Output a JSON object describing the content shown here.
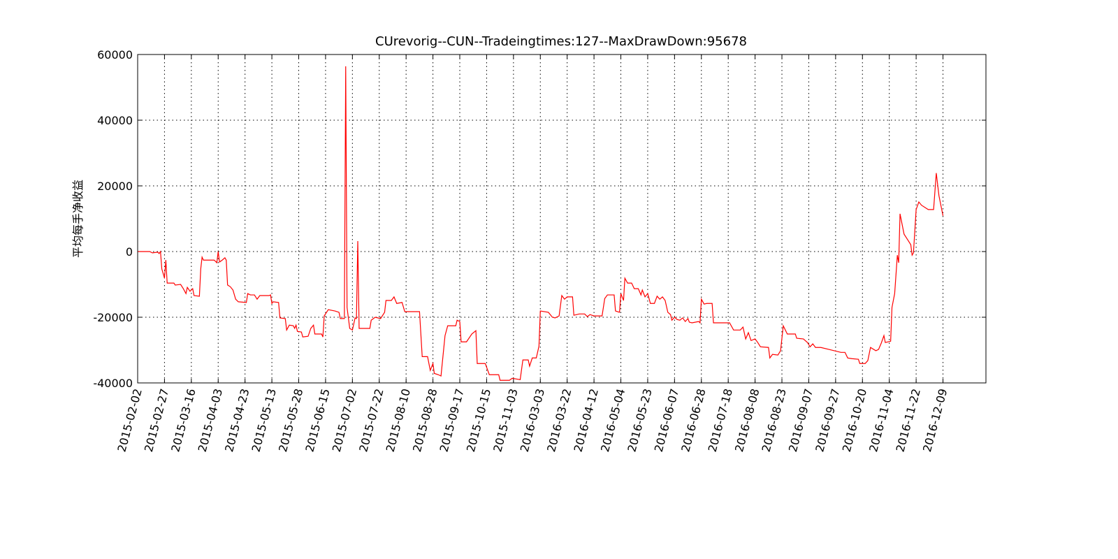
{
  "chart_data": {
    "type": "line",
    "title": "CUrevorig--CUN--Tradeingtimes:127--MaxDrawDown:95678",
    "y_label": "平均每手净收益",
    "color": "#ff0000",
    "grid": true,
    "xlim": [
      0,
      632
    ],
    "ylim": [
      -40000,
      60000
    ],
    "yticks": [
      -40000,
      -20000,
      0,
      20000,
      40000,
      60000
    ],
    "xticks": [
      {
        "value": 0,
        "label": "2015-02-02"
      },
      {
        "value": 20,
        "label": "2015-02-27"
      },
      {
        "value": 40,
        "label": "2015-03-16"
      },
      {
        "value": 60,
        "label": "2015-04-03"
      },
      {
        "value": 80,
        "label": "2015-04-23"
      },
      {
        "value": 100,
        "label": "2015-05-13"
      },
      {
        "value": 120,
        "label": "2015-05-28"
      },
      {
        "value": 140,
        "label": "2015-06-15"
      },
      {
        "value": 160,
        "label": "2015-07-02"
      },
      {
        "value": 180,
        "label": "2015-07-22"
      },
      {
        "value": 200,
        "label": "2015-08-10"
      },
      {
        "value": 220,
        "label": "2015-08-28"
      },
      {
        "value": 240,
        "label": "2015-09-17"
      },
      {
        "value": 260,
        "label": "2015-10-15"
      },
      {
        "value": 280,
        "label": "2015-11-03"
      },
      {
        "value": 300,
        "label": "2016-03-03"
      },
      {
        "value": 320,
        "label": "2016-03-22"
      },
      {
        "value": 340,
        "label": "2016-04-12"
      },
      {
        "value": 360,
        "label": "2016-05-04"
      },
      {
        "value": 380,
        "label": "2016-05-23"
      },
      {
        "value": 400,
        "label": "2016-06-07"
      },
      {
        "value": 420,
        "label": "2016-06-28"
      },
      {
        "value": 440,
        "label": "2016-07-18"
      },
      {
        "value": 460,
        "label": "2016-08-08"
      },
      {
        "value": 480,
        "label": "2016-08-23"
      },
      {
        "value": 500,
        "label": "2016-09-07"
      },
      {
        "value": 520,
        "label": "2016-09-27"
      },
      {
        "value": 540,
        "label": "2016-10-20"
      },
      {
        "value": 560,
        "label": "2016-11-04"
      },
      {
        "value": 580,
        "label": "2016-11-22"
      },
      {
        "value": 600,
        "label": "2016-12-09"
      }
    ],
    "x": [
      0,
      9,
      11,
      15,
      16,
      17,
      18,
      20,
      21,
      22,
      27,
      28,
      32,
      34,
      36,
      37,
      39,
      41,
      42,
      46,
      47,
      48,
      49,
      57,
      59,
      60,
      61,
      63,
      65,
      66,
      67,
      69,
      71,
      73,
      75,
      81,
      82,
      84,
      87,
      89,
      91,
      98,
      99,
      100,
      101,
      105,
      106,
      110,
      111,
      113,
      116,
      117,
      118,
      119,
      122,
      123,
      127,
      129,
      131,
      132,
      137,
      138,
      139,
      142,
      147,
      150,
      151,
      154,
      155,
      156,
      158,
      160,
      162,
      163,
      164,
      165,
      173,
      174,
      177,
      181,
      184,
      185,
      189,
      191,
      193,
      197,
      199,
      210,
      212,
      216,
      218,
      220,
      221,
      224,
      226,
      229,
      231,
      237,
      238,
      240,
      241,
      245,
      249,
      252,
      253,
      259,
      262,
      269,
      270,
      277,
      279,
      285,
      287,
      291,
      292,
      294,
      297,
      299,
      300,
      306,
      309,
      311,
      314,
      316,
      318,
      320,
      324,
      325,
      329,
      333,
      335,
      337,
      340,
      346,
      348,
      350,
      355,
      356,
      359,
      360,
      362,
      363,
      365,
      368,
      370,
      373,
      375,
      376,
      378,
      380,
      382,
      385,
      387,
      389,
      391,
      393,
      395,
      397,
      398,
      400,
      402,
      404,
      406,
      408,
      410,
      411,
      413,
      418,
      419,
      420,
      422,
      424,
      428,
      429,
      441,
      444,
      449,
      451,
      453,
      455,
      457,
      460,
      462,
      464,
      470,
      471,
      473,
      477,
      479,
      481,
      484,
      490,
      491,
      496,
      499,
      501,
      503,
      505,
      509,
      515,
      524,
      527,
      529,
      532,
      537,
      538,
      542,
      544,
      546,
      550,
      552,
      554,
      556,
      557,
      561,
      562,
      564,
      566,
      567,
      568,
      571,
      574,
      576,
      577,
      578,
      580,
      582,
      584,
      589,
      593,
      595,
      597,
      600
    ],
    "values": [
      0,
      0,
      -400,
      -200,
      -600,
      0,
      -5300,
      -8100,
      -2600,
      -9600,
      -9600,
      -10200,
      -10000,
      -11300,
      -12800,
      -10900,
      -12100,
      -11300,
      -13400,
      -13600,
      -5300,
      -1700,
      -2600,
      -2600,
      -3400,
      0,
      -3200,
      -2600,
      -1900,
      -2600,
      -10200,
      -10700,
      -11700,
      -14500,
      -15300,
      -15500,
      -12800,
      -13200,
      -13200,
      -14500,
      -13400,
      -13400,
      -13200,
      -15800,
      -15300,
      -15500,
      -20200,
      -20400,
      -23900,
      -22400,
      -22600,
      -23400,
      -22400,
      -24300,
      -24500,
      -26000,
      -25800,
      -23400,
      -22400,
      -25100,
      -25100,
      -26000,
      -19600,
      -17700,
      -18100,
      -18500,
      -20400,
      -20400,
      56400,
      -17000,
      -23400,
      -23900,
      -20200,
      -20400,
      3200,
      -23400,
      -23400,
      -20900,
      -20000,
      -20400,
      -18500,
      -14900,
      -14900,
      -13800,
      -15800,
      -15500,
      -18300,
      -18300,
      -32000,
      -32000,
      -36200,
      -34100,
      -37100,
      -37500,
      -37900,
      -25600,
      -22600,
      -22600,
      -20900,
      -21300,
      -27500,
      -27500,
      -25100,
      -24100,
      -34100,
      -34100,
      -37500,
      -37500,
      -39200,
      -39200,
      -38600,
      -39000,
      -33000,
      -33000,
      -34900,
      -32400,
      -32400,
      -28800,
      -18100,
      -18500,
      -20000,
      -20200,
      -19600,
      -13400,
      -14500,
      -13800,
      -13800,
      -19400,
      -19000,
      -19000,
      -19800,
      -19200,
      -19600,
      -19600,
      -14300,
      -13200,
      -13200,
      -18100,
      -18500,
      -12800,
      -14900,
      -8100,
      -9600,
      -9600,
      -11300,
      -11300,
      -13200,
      -11700,
      -13800,
      -12800,
      -15800,
      -15800,
      -13600,
      -14500,
      -13800,
      -14900,
      -18500,
      -19200,
      -20900,
      -20000,
      -20700,
      -20900,
      -20200,
      -21300,
      -20400,
      -21500,
      -21700,
      -21300,
      -21700,
      -14500,
      -16000,
      -15800,
      -15800,
      -21700,
      -21700,
      -23900,
      -23900,
      -23000,
      -26600,
      -24700,
      -27100,
      -26600,
      -27700,
      -29000,
      -29200,
      -32400,
      -31300,
      -31500,
      -30200,
      -22600,
      -25100,
      -25100,
      -26400,
      -26600,
      -27700,
      -29000,
      -28100,
      -29200,
      -29200,
      -29800,
      -30700,
      -30700,
      -32400,
      -32600,
      -32800,
      -34100,
      -34100,
      -33200,
      -29200,
      -30200,
      -29800,
      -27900,
      -25600,
      -27700,
      -27300,
      -17000,
      -12800,
      -1100,
      -3400,
      11500,
      5300,
      3400,
      2100,
      -1100,
      -400,
      12800,
      15100,
      14100,
      12800,
      12800,
      23900,
      17000,
      10900
    ]
  }
}
